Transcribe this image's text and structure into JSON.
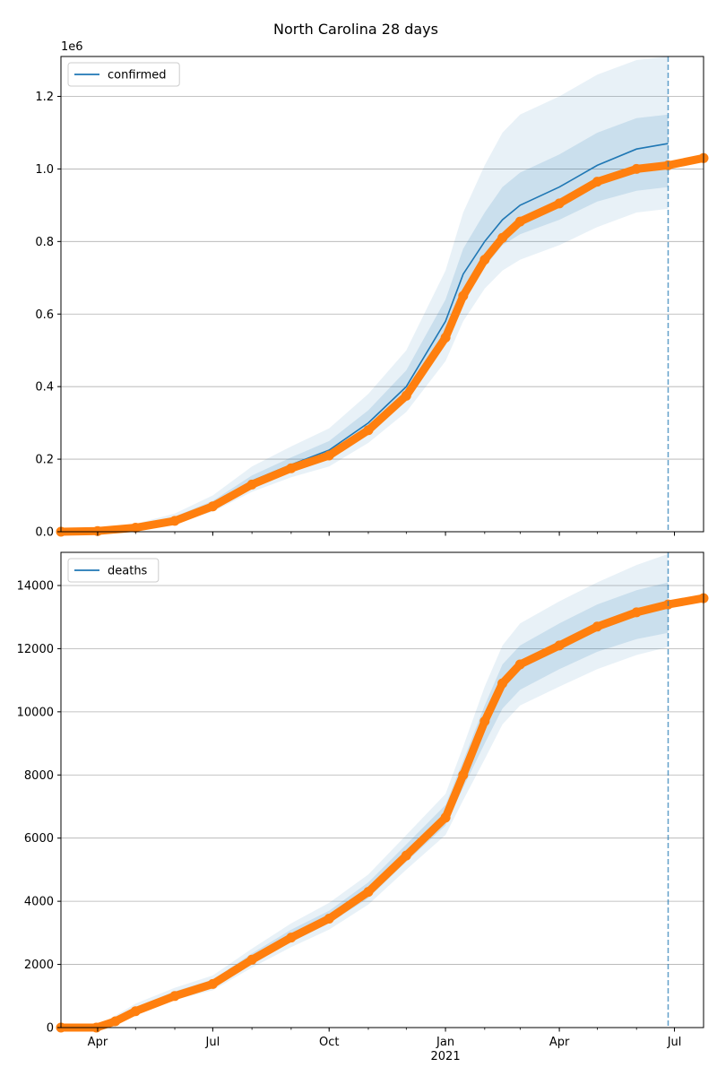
{
  "chart_data": {
    "type": "line",
    "title": "North Carolina 28 days",
    "x_ticks": [
      "Apr",
      "Jul",
      "Oct",
      "Jan",
      "Apr",
      "Jul"
    ],
    "x_tick_dates": [
      "2020-04-01",
      "2020-07-01",
      "2020-10-01",
      "2021-01-01",
      "2021-04-01",
      "2021-07-01"
    ],
    "x_year_label": "2021",
    "xlim": [
      "2020-03-03",
      "2021-07-24"
    ],
    "forecast_start": "2021-06-26",
    "colors": {
      "model": "#1f77b4",
      "observed": "#ff7f0e",
      "band": "#1f77b4"
    },
    "panels": [
      {
        "legend": "confirmed",
        "legend_position": "upper left",
        "axis_multiplier": "1e6",
        "ylim": [
          0,
          1.31
        ],
        "yticks": [
          0,
          0.2,
          0.4,
          0.6,
          0.8,
          1.0,
          1.2
        ],
        "ytick_labels": [
          "0.0",
          "0.2",
          "0.4",
          "0.6",
          "0.8",
          "1.0",
          "1.2"
        ],
        "grid": true,
        "model_mean": [
          [
            "2020-03-03",
            0
          ],
          [
            "2020-04-01",
            0.003
          ],
          [
            "2020-05-01",
            0.015
          ],
          [
            "2020-06-01",
            0.035
          ],
          [
            "2020-07-01",
            0.075
          ],
          [
            "2020-08-01",
            0.14
          ],
          [
            "2020-09-01",
            0.185
          ],
          [
            "2020-10-01",
            0.225
          ],
          [
            "2020-11-01",
            0.3
          ],
          [
            "2020-12-01",
            0.4
          ],
          [
            "2021-01-01",
            0.58
          ],
          [
            "2021-01-15",
            0.71
          ],
          [
            "2021-02-01",
            0.8
          ],
          [
            "2021-02-15",
            0.86
          ],
          [
            "2021-03-01",
            0.9
          ],
          [
            "2021-04-01",
            0.95
          ],
          [
            "2021-05-01",
            1.01
          ],
          [
            "2021-06-01",
            1.055
          ],
          [
            "2021-06-26",
            1.07
          ]
        ],
        "band_inner": [
          [
            "2020-03-03",
            0,
            0
          ],
          [
            "2020-04-01",
            0.002,
            0.004
          ],
          [
            "2020-05-01",
            0.012,
            0.018
          ],
          [
            "2020-06-01",
            0.03,
            0.042
          ],
          [
            "2020-07-01",
            0.065,
            0.085
          ],
          [
            "2020-08-01",
            0.125,
            0.155
          ],
          [
            "2020-09-01",
            0.165,
            0.205
          ],
          [
            "2020-10-01",
            0.2,
            0.25
          ],
          [
            "2020-11-01",
            0.27,
            0.335
          ],
          [
            "2020-12-01",
            0.36,
            0.445
          ],
          [
            "2021-01-01",
            0.52,
            0.64
          ],
          [
            "2021-01-15",
            0.64,
            0.78
          ],
          [
            "2021-02-01",
            0.73,
            0.88
          ],
          [
            "2021-02-15",
            0.79,
            0.95
          ],
          [
            "2021-03-01",
            0.82,
            0.99
          ],
          [
            "2021-04-01",
            0.86,
            1.04
          ],
          [
            "2021-05-01",
            0.91,
            1.1
          ],
          [
            "2021-06-01",
            0.94,
            1.14
          ],
          [
            "2021-06-26",
            0.95,
            1.15
          ]
        ],
        "band_outer": [
          [
            "2020-03-03",
            0,
            0
          ],
          [
            "2020-04-01",
            0.001,
            0.006
          ],
          [
            "2020-05-01",
            0.01,
            0.022
          ],
          [
            "2020-06-01",
            0.025,
            0.05
          ],
          [
            "2020-07-01",
            0.055,
            0.1
          ],
          [
            "2020-08-01",
            0.11,
            0.18
          ],
          [
            "2020-09-01",
            0.15,
            0.235
          ],
          [
            "2020-10-01",
            0.18,
            0.285
          ],
          [
            "2020-11-01",
            0.245,
            0.38
          ],
          [
            "2020-12-01",
            0.33,
            0.5
          ],
          [
            "2021-01-01",
            0.47,
            0.72
          ],
          [
            "2021-01-15",
            0.58,
            0.88
          ],
          [
            "2021-02-01",
            0.67,
            1.01
          ],
          [
            "2021-02-15",
            0.72,
            1.1
          ],
          [
            "2021-03-01",
            0.75,
            1.15
          ],
          [
            "2021-04-01",
            0.79,
            1.2
          ],
          [
            "2021-05-01",
            0.84,
            1.26
          ],
          [
            "2021-06-01",
            0.88,
            1.3
          ],
          [
            "2021-06-26",
            0.89,
            1.31
          ]
        ],
        "observed": [
          [
            "2020-03-03",
            0
          ],
          [
            "2020-04-01",
            0.002
          ],
          [
            "2020-05-01",
            0.011
          ],
          [
            "2020-06-01",
            0.03
          ],
          [
            "2020-07-01",
            0.07
          ],
          [
            "2020-08-01",
            0.13
          ],
          [
            "2020-09-01",
            0.175
          ],
          [
            "2020-10-01",
            0.21
          ],
          [
            "2020-11-01",
            0.28
          ],
          [
            "2020-12-01",
            0.375
          ],
          [
            "2021-01-01",
            0.535
          ],
          [
            "2021-01-15",
            0.65
          ],
          [
            "2021-02-01",
            0.75
          ],
          [
            "2021-02-15",
            0.81
          ],
          [
            "2021-03-01",
            0.855
          ],
          [
            "2021-04-01",
            0.905
          ],
          [
            "2021-05-01",
            0.965
          ],
          [
            "2021-06-01",
            1.0
          ],
          [
            "2021-06-26",
            1.01
          ],
          [
            "2021-07-24",
            1.03
          ]
        ]
      },
      {
        "legend": "deaths",
        "legend_position": "upper left",
        "axis_multiplier": "",
        "ylim": [
          0,
          15050
        ],
        "yticks": [
          0,
          2000,
          4000,
          6000,
          8000,
          10000,
          12000,
          14000
        ],
        "ytick_labels": [
          "0",
          "2000",
          "4000",
          "6000",
          "8000",
          "10000",
          "12000",
          "14000"
        ],
        "grid": true,
        "model_mean": [
          [
            "2020-03-03",
            0
          ],
          [
            "2020-03-31",
            0
          ],
          [
            "2020-04-15",
            230
          ],
          [
            "2020-05-01",
            560
          ],
          [
            "2020-06-01",
            1050
          ],
          [
            "2020-07-01",
            1400
          ],
          [
            "2020-08-01",
            2200
          ],
          [
            "2020-09-01",
            2900
          ],
          [
            "2020-10-01",
            3500
          ],
          [
            "2020-11-01",
            4350
          ],
          [
            "2020-12-01",
            5500
          ],
          [
            "2021-01-01",
            6700
          ],
          [
            "2021-01-15",
            8000
          ],
          [
            "2021-02-01",
            9600
          ],
          [
            "2021-02-15",
            10800
          ],
          [
            "2021-03-01",
            11400
          ],
          [
            "2021-04-01",
            12100
          ],
          [
            "2021-05-01",
            12700
          ],
          [
            "2021-06-01",
            13150
          ],
          [
            "2021-06-26",
            13400
          ]
        ],
        "band_inner": [
          [
            "2020-03-03",
            0,
            0
          ],
          [
            "2020-03-31",
            0,
            20
          ],
          [
            "2020-04-15",
            170,
            300
          ],
          [
            "2020-05-01",
            480,
            650
          ],
          [
            "2020-06-01",
            950,
            1150
          ],
          [
            "2020-07-01",
            1280,
            1520
          ],
          [
            "2020-08-01",
            2050,
            2350
          ],
          [
            "2020-09-01",
            2700,
            3100
          ],
          [
            "2020-10-01",
            3300,
            3700
          ],
          [
            "2020-11-01",
            4100,
            4600
          ],
          [
            "2020-12-01",
            5250,
            5800
          ],
          [
            "2021-01-01",
            6400,
            7050
          ],
          [
            "2021-01-15",
            7600,
            8450
          ],
          [
            "2021-02-01",
            9000,
            10200
          ],
          [
            "2021-02-15",
            10100,
            11500
          ],
          [
            "2021-03-01",
            10700,
            12100
          ],
          [
            "2021-04-01",
            11350,
            12800
          ],
          [
            "2021-05-01",
            11900,
            13400
          ],
          [
            "2021-06-01",
            12300,
            13850
          ],
          [
            "2021-06-26",
            12500,
            14100
          ]
        ],
        "band_outer": [
          [
            "2020-03-03",
            0,
            0
          ],
          [
            "2020-03-31",
            0,
            40
          ],
          [
            "2020-04-15",
            120,
            380
          ],
          [
            "2020-05-01",
            420,
            760
          ],
          [
            "2020-06-01",
            880,
            1260
          ],
          [
            "2020-07-01",
            1180,
            1650
          ],
          [
            "2020-08-01",
            1900,
            2500
          ],
          [
            "2020-09-01",
            2550,
            3300
          ],
          [
            "2020-10-01",
            3100,
            3950
          ],
          [
            "2020-11-01",
            3900,
            4850
          ],
          [
            "2020-12-01",
            5000,
            6100
          ],
          [
            "2021-01-01",
            6100,
            7400
          ],
          [
            "2021-01-15",
            7200,
            8900
          ],
          [
            "2021-02-01",
            8500,
            10800
          ],
          [
            "2021-02-15",
            9600,
            12100
          ],
          [
            "2021-03-01",
            10200,
            12800
          ],
          [
            "2021-04-01",
            10800,
            13500
          ],
          [
            "2021-05-01",
            11350,
            14100
          ],
          [
            "2021-06-01",
            11800,
            14650
          ],
          [
            "2021-06-26",
            12050,
            15000
          ]
        ],
        "observed": [
          [
            "2020-03-03",
            0
          ],
          [
            "2020-03-31",
            0
          ],
          [
            "2020-04-15",
            200
          ],
          [
            "2020-05-01",
            520
          ],
          [
            "2020-06-01",
            1000
          ],
          [
            "2020-07-01",
            1380
          ],
          [
            "2020-08-01",
            2150
          ],
          [
            "2020-09-01",
            2850
          ],
          [
            "2020-10-01",
            3450
          ],
          [
            "2020-11-01",
            4300
          ],
          [
            "2020-12-01",
            5450
          ],
          [
            "2021-01-01",
            6650
          ],
          [
            "2021-01-15",
            8000
          ],
          [
            "2021-02-01",
            9700
          ],
          [
            "2021-02-15",
            10900
          ],
          [
            "2021-03-01",
            11500
          ],
          [
            "2021-04-01",
            12100
          ],
          [
            "2021-05-01",
            12700
          ],
          [
            "2021-06-01",
            13150
          ],
          [
            "2021-06-26",
            13400
          ],
          [
            "2021-07-24",
            13600
          ]
        ]
      }
    ]
  }
}
